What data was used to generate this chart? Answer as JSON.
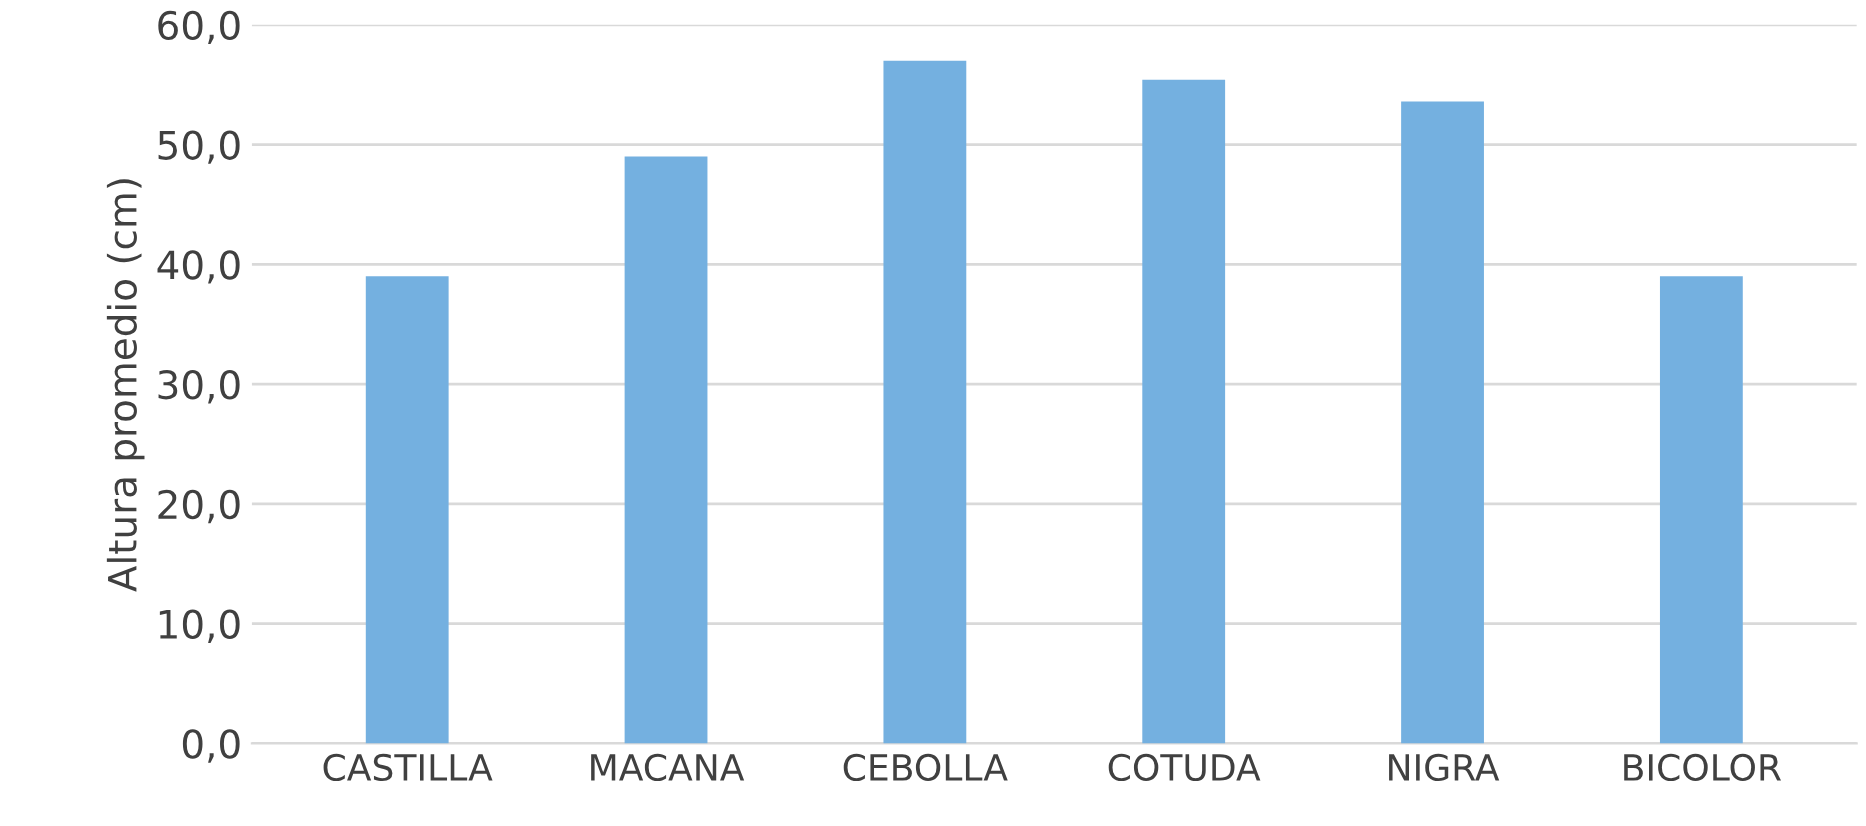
{
  "chart_data": {
    "type": "bar",
    "ylabel": "Altura promedio (cm)",
    "categories": [
      "CASTILLA",
      "MACANA",
      "CEBOLLA",
      "COTUDA",
      "NIGRA",
      "BICOLOR"
    ],
    "values": [
      39.0,
      49.0,
      57.0,
      55.4,
      53.6,
      39.0
    ],
    "color": "#74b0e0",
    "ylim": [
      0,
      60
    ],
    "yticks": [
      {
        "value": 0,
        "label": "0,0"
      },
      {
        "value": 10,
        "label": "10,0"
      },
      {
        "value": 20,
        "label": "20,0"
      },
      {
        "value": 30,
        "label": "30,0"
      },
      {
        "value": 40,
        "label": "40,0"
      },
      {
        "value": 50,
        "label": "50,0"
      },
      {
        "value": 60,
        "label": "60,0"
      }
    ],
    "grid": "y"
  }
}
